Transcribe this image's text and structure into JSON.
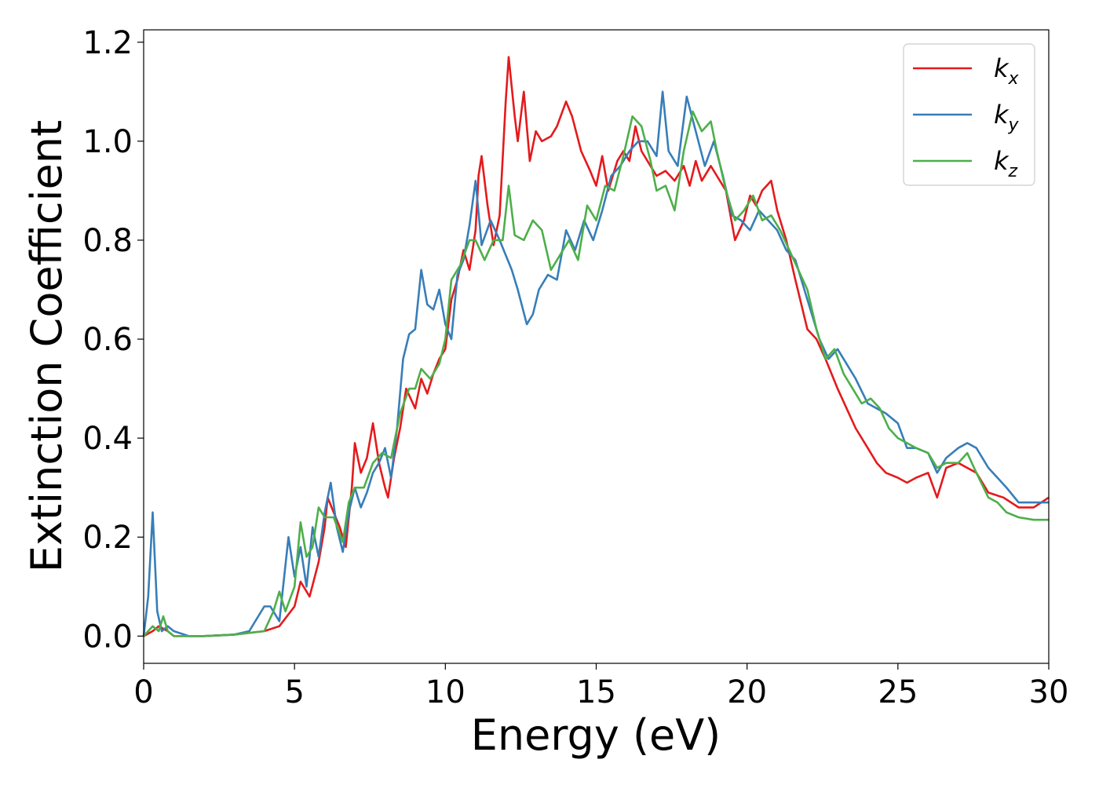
{
  "chart_data": {
    "type": "line",
    "xlabel": "Energy (eV)",
    "ylabel": "Extinction Coefficient",
    "xlim": [
      0,
      30
    ],
    "ylim": [
      -0.055,
      1.225
    ],
    "xticks": [
      "0",
      "5",
      "10",
      "15",
      "20",
      "25",
      "30"
    ],
    "yticks": [
      "0.0",
      "0.2",
      "0.4",
      "0.6",
      "0.8",
      "1.0",
      "1.2"
    ],
    "grid": false,
    "legend_position": "top-right",
    "series": [
      {
        "name": "kx",
        "label_base": "k",
        "label_sub": "x",
        "color": "#e41a1c",
        "points": [
          [
            0,
            0.0
          ],
          [
            0.3,
            0.01
          ],
          [
            0.5,
            0.02
          ],
          [
            0.8,
            0.01
          ],
          [
            1.0,
            0.0
          ],
          [
            2,
            0.0
          ],
          [
            3,
            0.003
          ],
          [
            4,
            0.01
          ],
          [
            4.5,
            0.02
          ],
          [
            5.0,
            0.06
          ],
          [
            5.2,
            0.11
          ],
          [
            5.5,
            0.08
          ],
          [
            5.8,
            0.15
          ],
          [
            6.0,
            0.22
          ],
          [
            6.1,
            0.28
          ],
          [
            6.3,
            0.25
          ],
          [
            6.5,
            0.22
          ],
          [
            6.7,
            0.18
          ],
          [
            6.9,
            0.3
          ],
          [
            7.0,
            0.39
          ],
          [
            7.2,
            0.33
          ],
          [
            7.4,
            0.36
          ],
          [
            7.6,
            0.43
          ],
          [
            7.8,
            0.35
          ],
          [
            8.0,
            0.3
          ],
          [
            8.1,
            0.28
          ],
          [
            8.3,
            0.36
          ],
          [
            8.5,
            0.42
          ],
          [
            8.7,
            0.5
          ],
          [
            9.0,
            0.46
          ],
          [
            9.2,
            0.52
          ],
          [
            9.4,
            0.49
          ],
          [
            9.6,
            0.53
          ],
          [
            9.8,
            0.56
          ],
          [
            10.0,
            0.58
          ],
          [
            10.2,
            0.68
          ],
          [
            10.4,
            0.72
          ],
          [
            10.6,
            0.78
          ],
          [
            10.8,
            0.74
          ],
          [
            11.0,
            0.82
          ],
          [
            11.1,
            0.93
          ],
          [
            11.2,
            0.97
          ],
          [
            11.4,
            0.87
          ],
          [
            11.6,
            0.79
          ],
          [
            11.8,
            0.85
          ],
          [
            12.0,
            1.08
          ],
          [
            12.1,
            1.17
          ],
          [
            12.3,
            1.05
          ],
          [
            12.4,
            1.0
          ],
          [
            12.6,
            1.1
          ],
          [
            12.8,
            0.96
          ],
          [
            13.0,
            1.02
          ],
          [
            13.2,
            1.0
          ],
          [
            13.5,
            1.01
          ],
          [
            13.7,
            1.03
          ],
          [
            14.0,
            1.08
          ],
          [
            14.2,
            1.05
          ],
          [
            14.5,
            0.98
          ],
          [
            14.8,
            0.94
          ],
          [
            15.0,
            0.91
          ],
          [
            15.2,
            0.97
          ],
          [
            15.4,
            0.9
          ],
          [
            15.7,
            0.96
          ],
          [
            15.9,
            0.98
          ],
          [
            16.1,
            0.96
          ],
          [
            16.3,
            1.03
          ],
          [
            16.5,
            0.98
          ],
          [
            16.8,
            0.95
          ],
          [
            17.0,
            0.93
          ],
          [
            17.3,
            0.94
          ],
          [
            17.6,
            0.92
          ],
          [
            17.9,
            0.95
          ],
          [
            18.1,
            0.91
          ],
          [
            18.3,
            0.96
          ],
          [
            18.5,
            0.92
          ],
          [
            18.8,
            0.95
          ],
          [
            19.0,
            0.93
          ],
          [
            19.3,
            0.9
          ],
          [
            19.6,
            0.8
          ],
          [
            19.9,
            0.84
          ],
          [
            20.1,
            0.89
          ],
          [
            20.3,
            0.87
          ],
          [
            20.5,
            0.9
          ],
          [
            20.8,
            0.92
          ],
          [
            21.0,
            0.86
          ],
          [
            21.3,
            0.8
          ],
          [
            21.6,
            0.72
          ],
          [
            22.0,
            0.62
          ],
          [
            22.3,
            0.6
          ],
          [
            22.6,
            0.56
          ],
          [
            23.0,
            0.5
          ],
          [
            23.3,
            0.46
          ],
          [
            23.6,
            0.42
          ],
          [
            24.0,
            0.38
          ],
          [
            24.3,
            0.35
          ],
          [
            24.6,
            0.33
          ],
          [
            25.0,
            0.32
          ],
          [
            25.3,
            0.31
          ],
          [
            25.6,
            0.32
          ],
          [
            26.0,
            0.33
          ],
          [
            26.3,
            0.28
          ],
          [
            26.6,
            0.34
          ],
          [
            27.0,
            0.35
          ],
          [
            27.3,
            0.34
          ],
          [
            27.6,
            0.33
          ],
          [
            28.0,
            0.29
          ],
          [
            28.5,
            0.28
          ],
          [
            29.0,
            0.26
          ],
          [
            29.5,
            0.26
          ],
          [
            30.0,
            0.28
          ]
        ]
      },
      {
        "name": "ky",
        "label_base": "k",
        "label_sub": "y",
        "color": "#377eb8",
        "points": [
          [
            0,
            0.0
          ],
          [
            0.15,
            0.08
          ],
          [
            0.3,
            0.25
          ],
          [
            0.45,
            0.05
          ],
          [
            0.6,
            0.01
          ],
          [
            0.8,
            0.02
          ],
          [
            1.0,
            0.01
          ],
          [
            1.5,
            0.0
          ],
          [
            2,
            0.0
          ],
          [
            3,
            0.003
          ],
          [
            3.5,
            0.01
          ],
          [
            4.0,
            0.06
          ],
          [
            4.2,
            0.06
          ],
          [
            4.5,
            0.03
          ],
          [
            4.8,
            0.2
          ],
          [
            5.0,
            0.12
          ],
          [
            5.2,
            0.18
          ],
          [
            5.4,
            0.1
          ],
          [
            5.6,
            0.22
          ],
          [
            5.8,
            0.16
          ],
          [
            6.0,
            0.25
          ],
          [
            6.2,
            0.31
          ],
          [
            6.4,
            0.22
          ],
          [
            6.6,
            0.17
          ],
          [
            6.8,
            0.25
          ],
          [
            7.0,
            0.3
          ],
          [
            7.2,
            0.26
          ],
          [
            7.4,
            0.29
          ],
          [
            7.6,
            0.33
          ],
          [
            7.8,
            0.35
          ],
          [
            8.0,
            0.38
          ],
          [
            8.2,
            0.32
          ],
          [
            8.4,
            0.42
          ],
          [
            8.6,
            0.56
          ],
          [
            8.8,
            0.61
          ],
          [
            9.0,
            0.62
          ],
          [
            9.2,
            0.74
          ],
          [
            9.4,
            0.67
          ],
          [
            9.6,
            0.66
          ],
          [
            9.8,
            0.7
          ],
          [
            10.0,
            0.63
          ],
          [
            10.2,
            0.6
          ],
          [
            10.4,
            0.73
          ],
          [
            10.6,
            0.76
          ],
          [
            10.8,
            0.83
          ],
          [
            11.0,
            0.92
          ],
          [
            11.2,
            0.79
          ],
          [
            11.5,
            0.84
          ],
          [
            11.8,
            0.8
          ],
          [
            12.0,
            0.77
          ],
          [
            12.2,
            0.74
          ],
          [
            12.4,
            0.7
          ],
          [
            12.7,
            0.63
          ],
          [
            12.9,
            0.65
          ],
          [
            13.1,
            0.7
          ],
          [
            13.4,
            0.73
          ],
          [
            13.7,
            0.72
          ],
          [
            14.0,
            0.82
          ],
          [
            14.3,
            0.78
          ],
          [
            14.6,
            0.84
          ],
          [
            14.9,
            0.8
          ],
          [
            15.2,
            0.86
          ],
          [
            15.5,
            0.93
          ],
          [
            15.8,
            0.95
          ],
          [
            16.1,
            0.98
          ],
          [
            16.4,
            1.0
          ],
          [
            16.7,
            1.0
          ],
          [
            17.0,
            0.97
          ],
          [
            17.2,
            1.1
          ],
          [
            17.4,
            0.98
          ],
          [
            17.7,
            0.95
          ],
          [
            18.0,
            1.09
          ],
          [
            18.3,
            1.02
          ],
          [
            18.6,
            0.95
          ],
          [
            18.9,
            1.0
          ],
          [
            19.2,
            0.93
          ],
          [
            19.5,
            0.85
          ],
          [
            19.8,
            0.84
          ],
          [
            20.1,
            0.82
          ],
          [
            20.4,
            0.86
          ],
          [
            20.7,
            0.84
          ],
          [
            21.0,
            0.82
          ],
          [
            21.3,
            0.78
          ],
          [
            21.6,
            0.76
          ],
          [
            22.0,
            0.68
          ],
          [
            22.4,
            0.6
          ],
          [
            22.7,
            0.56
          ],
          [
            23.0,
            0.58
          ],
          [
            23.3,
            0.55
          ],
          [
            23.6,
            0.52
          ],
          [
            24.0,
            0.47
          ],
          [
            24.3,
            0.46
          ],
          [
            24.6,
            0.45
          ],
          [
            25.0,
            0.43
          ],
          [
            25.3,
            0.38
          ],
          [
            25.6,
            0.38
          ],
          [
            26.0,
            0.37
          ],
          [
            26.3,
            0.33
          ],
          [
            26.6,
            0.36
          ],
          [
            27.0,
            0.38
          ],
          [
            27.3,
            0.39
          ],
          [
            27.6,
            0.38
          ],
          [
            28.0,
            0.34
          ],
          [
            28.3,
            0.32
          ],
          [
            28.6,
            0.3
          ],
          [
            29.0,
            0.27
          ],
          [
            29.5,
            0.27
          ],
          [
            30.0,
            0.27
          ]
        ]
      },
      {
        "name": "kz",
        "label_base": "k",
        "label_sub": "z",
        "color": "#4daf4a",
        "points": [
          [
            0,
            0.0
          ],
          [
            0.3,
            0.02
          ],
          [
            0.5,
            0.01
          ],
          [
            0.65,
            0.04
          ],
          [
            0.8,
            0.01
          ],
          [
            1.0,
            0.0
          ],
          [
            2,
            0.0
          ],
          [
            3,
            0.003
          ],
          [
            4,
            0.01
          ],
          [
            4.3,
            0.05
          ],
          [
            4.5,
            0.09
          ],
          [
            4.7,
            0.05
          ],
          [
            5.0,
            0.1
          ],
          [
            5.2,
            0.23
          ],
          [
            5.4,
            0.16
          ],
          [
            5.6,
            0.18
          ],
          [
            5.8,
            0.26
          ],
          [
            6.0,
            0.24
          ],
          [
            6.3,
            0.24
          ],
          [
            6.6,
            0.19
          ],
          [
            6.8,
            0.27
          ],
          [
            7.0,
            0.3
          ],
          [
            7.3,
            0.3
          ],
          [
            7.6,
            0.35
          ],
          [
            7.9,
            0.37
          ],
          [
            8.2,
            0.36
          ],
          [
            8.5,
            0.45
          ],
          [
            8.8,
            0.5
          ],
          [
            9.0,
            0.5
          ],
          [
            9.2,
            0.54
          ],
          [
            9.5,
            0.52
          ],
          [
            9.8,
            0.55
          ],
          [
            10.0,
            0.6
          ],
          [
            10.2,
            0.72
          ],
          [
            10.5,
            0.75
          ],
          [
            10.8,
            0.8
          ],
          [
            11.0,
            0.8
          ],
          [
            11.3,
            0.76
          ],
          [
            11.6,
            0.8
          ],
          [
            11.9,
            0.8
          ],
          [
            12.1,
            0.91
          ],
          [
            12.3,
            0.81
          ],
          [
            12.6,
            0.8
          ],
          [
            12.9,
            0.84
          ],
          [
            13.2,
            0.82
          ],
          [
            13.5,
            0.74
          ],
          [
            13.8,
            0.77
          ],
          [
            14.1,
            0.8
          ],
          [
            14.4,
            0.76
          ],
          [
            14.7,
            0.87
          ],
          [
            15.0,
            0.84
          ],
          [
            15.3,
            0.91
          ],
          [
            15.6,
            0.9
          ],
          [
            15.9,
            0.97
          ],
          [
            16.2,
            1.05
          ],
          [
            16.5,
            1.03
          ],
          [
            16.8,
            0.96
          ],
          [
            17.0,
            0.9
          ],
          [
            17.3,
            0.91
          ],
          [
            17.6,
            0.86
          ],
          [
            17.9,
            0.98
          ],
          [
            18.2,
            1.06
          ],
          [
            18.5,
            1.02
          ],
          [
            18.8,
            1.04
          ],
          [
            19.0,
            0.98
          ],
          [
            19.3,
            0.9
          ],
          [
            19.6,
            0.84
          ],
          [
            19.9,
            0.86
          ],
          [
            20.2,
            0.89
          ],
          [
            20.5,
            0.84
          ],
          [
            20.8,
            0.85
          ],
          [
            21.1,
            0.82
          ],
          [
            21.4,
            0.78
          ],
          [
            21.7,
            0.74
          ],
          [
            22.0,
            0.7
          ],
          [
            22.3,
            0.62
          ],
          [
            22.6,
            0.56
          ],
          [
            22.9,
            0.58
          ],
          [
            23.2,
            0.53
          ],
          [
            23.5,
            0.5
          ],
          [
            23.8,
            0.47
          ],
          [
            24.1,
            0.48
          ],
          [
            24.4,
            0.46
          ],
          [
            24.7,
            0.42
          ],
          [
            25.0,
            0.4
          ],
          [
            25.3,
            0.39
          ],
          [
            25.6,
            0.38
          ],
          [
            26.0,
            0.37
          ],
          [
            26.3,
            0.34
          ],
          [
            26.6,
            0.35
          ],
          [
            27.0,
            0.35
          ],
          [
            27.3,
            0.37
          ],
          [
            27.6,
            0.33
          ],
          [
            28.0,
            0.28
          ],
          [
            28.3,
            0.27
          ],
          [
            28.6,
            0.25
          ],
          [
            29.0,
            0.24
          ],
          [
            29.5,
            0.235
          ],
          [
            30.0,
            0.235
          ]
        ]
      }
    ]
  }
}
